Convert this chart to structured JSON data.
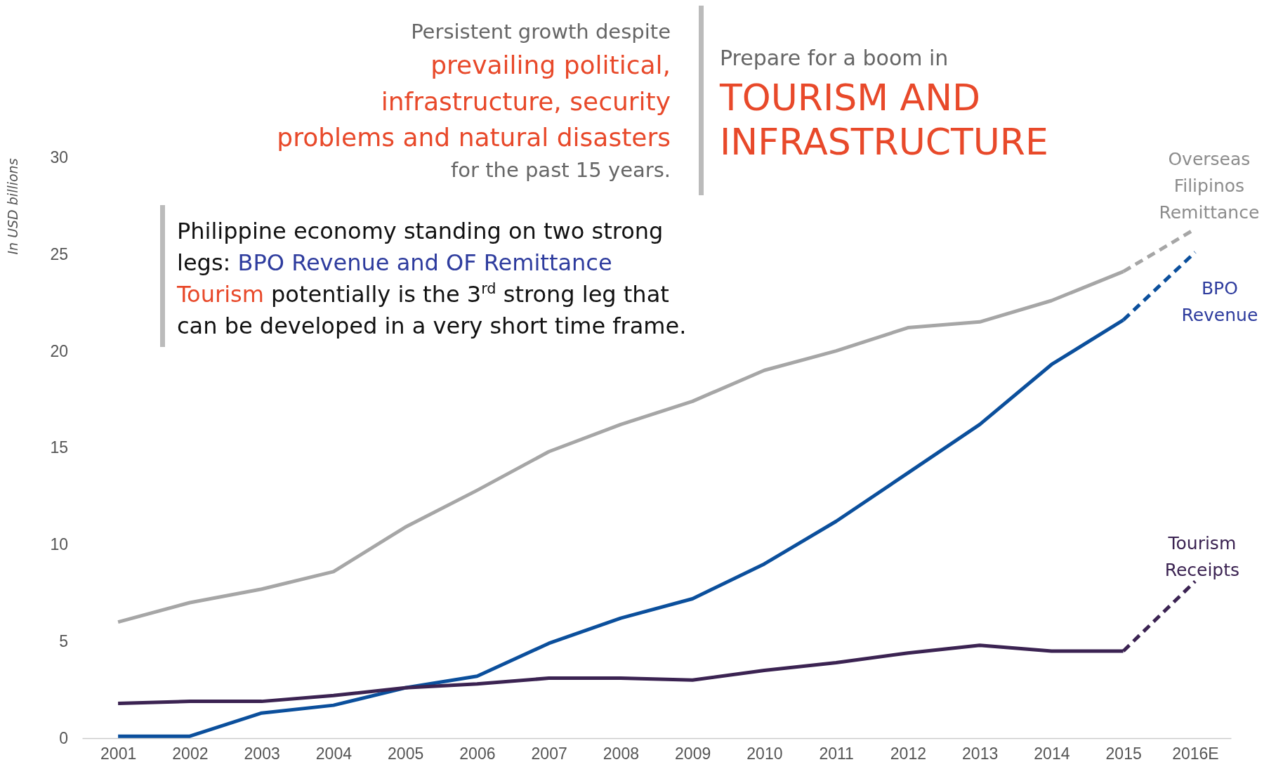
{
  "chart_data": {
    "type": "line",
    "title": "TOURISM AND INFRASTRUCTURE",
    "subtitle": "Prepare for a boom in",
    "ylabel": "In USD billions",
    "categories": [
      "2001",
      "2002",
      "2003",
      "2004",
      "2005",
      "2006",
      "2007",
      "2008",
      "2009",
      "2010",
      "2011",
      "2012",
      "2013",
      "2014",
      "2015",
      "2016E"
    ],
    "series": [
      {
        "name": "Overseas Filipinos Remittance",
        "color": "#a6a6a6",
        "line_style": "solid",
        "values": [
          6.0,
          7.0,
          7.7,
          8.6,
          10.9,
          12.8,
          14.8,
          16.2,
          17.4,
          19.0,
          20.0,
          21.2,
          21.5,
          22.6,
          24.1,
          null
        ]
      },
      {
        "color": "#a6a6a6",
        "line_style": "dashed",
        "values": [
          null,
          null,
          null,
          null,
          null,
          null,
          null,
          null,
          null,
          null,
          null,
          null,
          null,
          null,
          24.1,
          26.3
        ]
      },
      {
        "name": "BPO Revenue",
        "color": "#0b4f9c",
        "line_style": "solid",
        "values": [
          0.1,
          0.1,
          1.3,
          1.7,
          2.6,
          3.2,
          4.9,
          6.2,
          7.2,
          9.0,
          11.2,
          13.7,
          16.2,
          19.3,
          21.6,
          null
        ]
      },
      {
        "color": "#0b4f9c",
        "line_style": "dashed",
        "values": [
          null,
          null,
          null,
          null,
          null,
          null,
          null,
          null,
          null,
          null,
          null,
          null,
          null,
          null,
          21.6,
          25.1
        ]
      },
      {
        "name": "Tourism Receipts",
        "color": "#3b2352",
        "line_style": "solid",
        "values": [
          1.8,
          1.9,
          1.9,
          2.2,
          2.6,
          2.8,
          3.1,
          3.1,
          3.0,
          3.5,
          3.9,
          4.4,
          4.8,
          4.5,
          4.5,
          null
        ]
      },
      {
        "color": "#3b2352",
        "line_style": "dashed",
        "values": [
          null,
          null,
          null,
          null,
          null,
          null,
          null,
          null,
          null,
          null,
          null,
          null,
          null,
          null,
          4.5,
          8.1
        ]
      }
    ],
    "ylim": [
      0,
      30
    ],
    "yticks": [
      0,
      5,
      10,
      15,
      20,
      25,
      30
    ],
    "grid": false,
    "marker": "none",
    "annotations": [
      "Persistent growth despite",
      "prevailing political,",
      "infrastructure, security",
      "problems and natural disasters",
      "for the past 15 years.",
      "Philippine economy standing on two strong",
      "legs: ",
      "BPO Revenue and OF Remittance",
      "Tourism",
      " potentially is the 3$^{rd}$ strong leg that",
      "can be developed in a very short time frame."
    ]
  }
}
